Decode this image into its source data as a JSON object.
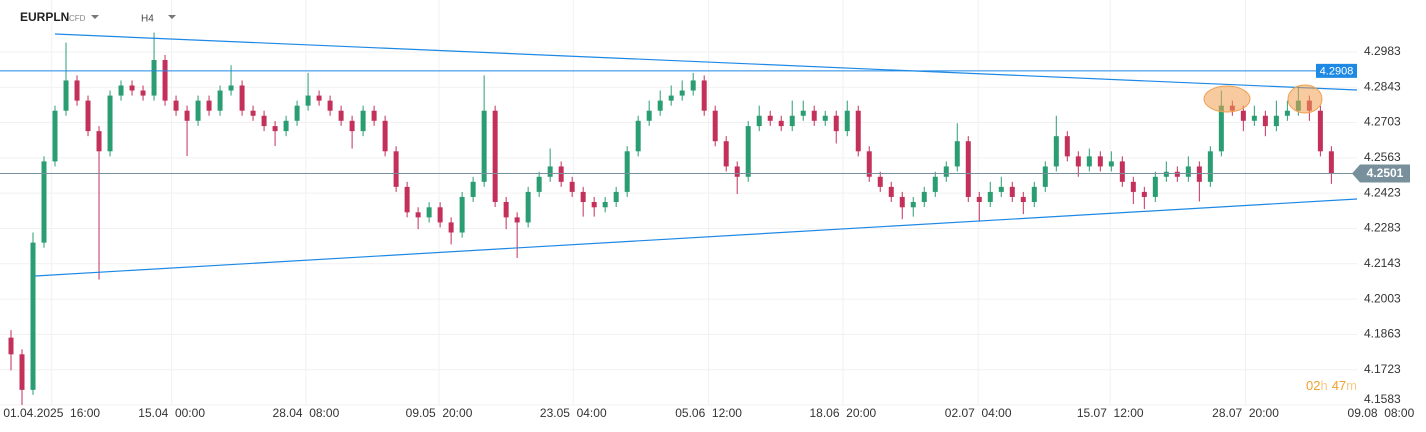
{
  "header": {
    "symbol": "EURPLN",
    "instrument_type": "CFD",
    "timeframe": "H4"
  },
  "countdown": [
    "02",
    "h",
    "47",
    "m"
  ],
  "chart_data": {
    "type": "candlestick",
    "up_color": "#2a9d72",
    "down_color": "#c3305a",
    "grid": true,
    "xlim": [
      0,
      129.6
    ],
    "xticks": [
      {
        "value": 4.7,
        "label": "01.04.2025  16:00"
      },
      {
        "value": 15.6,
        "label": "15.04  00:00"
      },
      {
        "value": 27.8,
        "label": "28.04  08:00"
      },
      {
        "value": 39.9,
        "label": "09.05  20:00"
      },
      {
        "value": 52.1,
        "label": "23.05  04:00"
      },
      {
        "value": 64.4,
        "label": "05.06  12:00"
      },
      {
        "value": 76.6,
        "label": "18.06  20:00"
      },
      {
        "value": 88.9,
        "label": "02.07  04:00"
      },
      {
        "value": 100.9,
        "label": "15.07  12:00"
      },
      {
        "value": 113.2,
        "label": "28.07  20:00"
      },
      {
        "value": 125.5,
        "label": "09.08  08:00"
      }
    ],
    "ylim": [
      4.1583,
      4.3189
    ],
    "yticks": [
      4.2983,
      4.2843,
      4.2703,
      4.2563,
      4.2423,
      4.2283,
      4.2143,
      4.2003,
      4.1863,
      4.1723,
      4.1583
    ],
    "price_lines": [
      {
        "value": 4.2908,
        "color": "#1e88e5"
      },
      {
        "value": 4.2501,
        "color": "#78909c"
      }
    ],
    "series": [
      {
        "open": [
          4.185,
          4.1784,
          4.1643,
          4.2227,
          4.2549,
          4.275,
          4.287,
          4.279,
          4.2669,
          4.2589,
          4.281,
          4.285,
          4.283,
          4.281,
          4.2951,
          4.279,
          4.275,
          4.271,
          4.279,
          4.275,
          4.283,
          4.285,
          4.275,
          4.273,
          4.2689,
          4.2669,
          4.271,
          4.277,
          4.281,
          4.279,
          4.275,
          4.271,
          4.2669,
          4.275,
          4.271,
          4.2589,
          4.2448,
          4.2347,
          4.2327,
          4.2367,
          4.2307,
          4.2267,
          4.2408,
          4.2468,
          4.275,
          4.2388,
          4.2327,
          4.2307,
          4.2428,
          4.2488,
          4.2529,
          4.2468,
          4.2428,
          4.2388,
          4.2367,
          4.2388,
          4.2428,
          4.2589,
          4.271,
          4.275,
          4.279,
          4.281,
          4.283,
          4.287,
          4.275,
          4.2629,
          4.2529,
          4.2488,
          4.2689,
          4.273,
          4.271,
          4.2689,
          4.273,
          4.275,
          4.271,
          4.273,
          4.2669,
          4.275,
          4.2589,
          4.2488,
          4.2448,
          4.2408,
          4.2367,
          4.2388,
          4.2428,
          4.2488,
          4.2529,
          4.2629,
          4.2408,
          4.2388,
          4.2428,
          4.2448,
          4.2408,
          4.2388,
          4.2448,
          4.2529,
          4.2649,
          4.2569,
          4.2529,
          4.2569,
          4.2529,
          4.2549,
          4.2468,
          4.2428,
          4.2408,
          4.2488,
          4.2508,
          4.2488,
          4.2529,
          4.2468,
          4.2589,
          4.277,
          4.275,
          4.271,
          4.273,
          4.2689,
          4.273,
          4.275,
          4.279,
          4.275,
          4.2589
        ],
        "high": [
          4.188,
          4.1804,
          4.2267,
          4.2569,
          4.277,
          4.302,
          4.289,
          4.281,
          4.2689,
          4.283,
          4.287,
          4.287,
          4.285,
          4.306,
          4.2971,
          4.281,
          4.277,
          4.281,
          4.281,
          4.285,
          4.293,
          4.287,
          4.277,
          4.275,
          4.2709,
          4.273,
          4.279,
          4.29,
          4.283,
          4.281,
          4.277,
          4.273,
          4.277,
          4.277,
          4.273,
          4.2609,
          4.2468,
          4.2367,
          4.2387,
          4.2387,
          4.2327,
          4.2428,
          4.2488,
          4.289,
          4.277,
          4.2408,
          4.2347,
          4.2448,
          4.2508,
          4.26,
          4.2549,
          4.2488,
          4.2448,
          4.2408,
          4.2408,
          4.2448,
          4.2609,
          4.273,
          4.279,
          4.283,
          4.285,
          4.287,
          4.29,
          4.289,
          4.277,
          4.2649,
          4.2549,
          4.2709,
          4.277,
          4.275,
          4.273,
          4.279,
          4.279,
          4.277,
          4.275,
          4.275,
          4.279,
          4.277,
          4.2609,
          4.2508,
          4.2468,
          4.2428,
          4.2408,
          4.2448,
          4.2508,
          4.2549,
          4.27,
          4.2649,
          4.2428,
          4.2468,
          4.2488,
          4.2468,
          4.2428,
          4.2468,
          4.2549,
          4.273,
          4.2669,
          4.2589,
          4.26,
          4.2589,
          4.2589,
          4.2569,
          4.2488,
          4.2448,
          4.2508,
          4.2549,
          4.2529,
          4.2569,
          4.2549,
          4.2609,
          4.283,
          4.279,
          4.277,
          4.277,
          4.275,
          4.279,
          4.279,
          4.285,
          4.281,
          4.277,
          4.2609
        ],
        "low": [
          4.172,
          4.1583,
          4.1623,
          4.2207,
          4.2529,
          4.273,
          4.277,
          4.2649,
          4.208,
          4.2569,
          4.279,
          4.281,
          4.279,
          4.279,
          4.277,
          4.273,
          4.257,
          4.269,
          4.273,
          4.273,
          4.281,
          4.273,
          4.271,
          4.2669,
          4.261,
          4.2649,
          4.269,
          4.275,
          4.277,
          4.273,
          4.269,
          4.26,
          4.2649,
          4.269,
          4.2569,
          4.2428,
          4.2327,
          4.228,
          4.2307,
          4.2287,
          4.222,
          4.2247,
          4.2388,
          4.2448,
          4.2368,
          4.228,
          4.2166,
          4.2287,
          4.2408,
          4.2468,
          4.2448,
          4.2408,
          4.233,
          4.233,
          4.2347,
          4.2368,
          4.2408,
          4.2569,
          4.269,
          4.273,
          4.277,
          4.279,
          4.281,
          4.273,
          4.2609,
          4.2509,
          4.242,
          4.2468,
          4.2669,
          4.269,
          4.2669,
          4.2669,
          4.271,
          4.269,
          4.269,
          4.262,
          4.2649,
          4.2569,
          4.2468,
          4.2428,
          4.2388,
          4.232,
          4.233,
          4.2368,
          4.2408,
          4.2468,
          4.2509,
          4.2388,
          4.231,
          4.2368,
          4.2408,
          4.2388,
          4.234,
          4.2368,
          4.2428,
          4.2509,
          4.2549,
          4.2488,
          4.2509,
          4.2509,
          4.2509,
          4.2448,
          4.238,
          4.236,
          4.2388,
          4.2468,
          4.2468,
          4.2468,
          4.239,
          4.2448,
          4.2569,
          4.273,
          4.2669,
          4.269,
          4.2649,
          4.2669,
          4.271,
          4.273,
          4.271,
          4.2569,
          4.246
        ],
        "close": [
          4.1784,
          4.1643,
          4.2227,
          4.2549,
          4.275,
          4.287,
          4.279,
          4.2669,
          4.2589,
          4.281,
          4.285,
          4.283,
          4.281,
          4.2951,
          4.279,
          4.275,
          4.271,
          4.279,
          4.275,
          4.283,
          4.285,
          4.275,
          4.273,
          4.2689,
          4.2669,
          4.271,
          4.277,
          4.281,
          4.279,
          4.275,
          4.271,
          4.2669,
          4.275,
          4.271,
          4.2589,
          4.2448,
          4.2347,
          4.2327,
          4.2367,
          4.2307,
          4.2267,
          4.2408,
          4.2468,
          4.275,
          4.2388,
          4.2327,
          4.2307,
          4.2428,
          4.2488,
          4.2529,
          4.2468,
          4.2428,
          4.2388,
          4.2367,
          4.2388,
          4.2428,
          4.2589,
          4.271,
          4.275,
          4.279,
          4.281,
          4.283,
          4.287,
          4.275,
          4.2629,
          4.2529,
          4.2488,
          4.2689,
          4.273,
          4.271,
          4.2689,
          4.273,
          4.275,
          4.271,
          4.273,
          4.2669,
          4.275,
          4.2589,
          4.2488,
          4.2448,
          4.2408,
          4.2367,
          4.2388,
          4.2428,
          4.2488,
          4.2529,
          4.2629,
          4.2408,
          4.2388,
          4.2428,
          4.2448,
          4.2408,
          4.2388,
          4.2448,
          4.2529,
          4.2649,
          4.2569,
          4.2529,
          4.2569,
          4.2529,
          4.2549,
          4.2468,
          4.2428,
          4.2408,
          4.2488,
          4.2508,
          4.2488,
          4.2529,
          4.2468,
          4.2589,
          4.277,
          4.275,
          4.271,
          4.273,
          4.2689,
          4.273,
          4.275,
          4.279,
          4.275,
          4.2589,
          4.2501
        ]
      }
    ]
  }
}
